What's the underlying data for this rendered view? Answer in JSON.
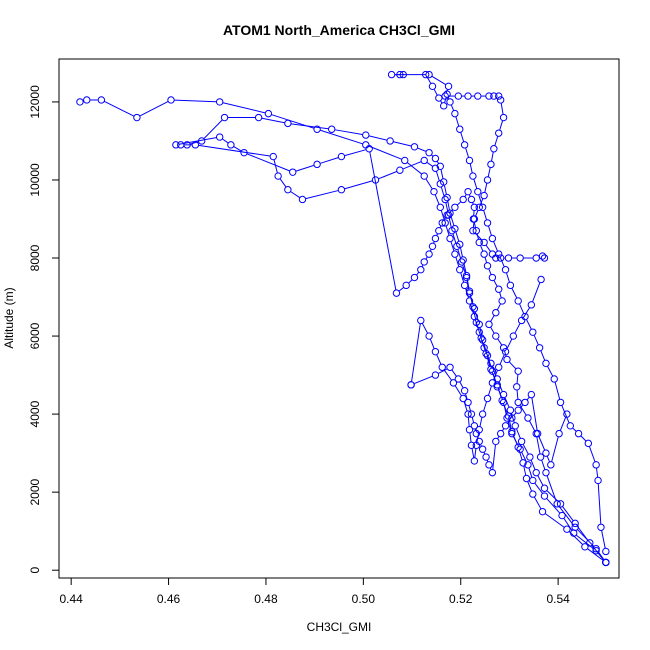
{
  "chart_data": {
    "type": "line",
    "title": "ATOM1 North_America CH3Cl_GMI",
    "xlabel": "CH3Cl_GMI",
    "ylabel": "Altitude (m)",
    "xlim": [
      0.4375,
      0.5525
    ],
    "ylim": [
      -200,
      13100
    ],
    "xticks": [
      0.44,
      0.46,
      0.48,
      0.5,
      0.52,
      0.54
    ],
    "xtick_labels": [
      "0.44",
      "0.46",
      "0.48",
      "0.50",
      "0.52",
      "0.54"
    ],
    "yticks": [
      0,
      2000,
      4000,
      6000,
      8000,
      10000,
      12000
    ],
    "ytick_labels": [
      "0",
      "2000",
      "4000",
      "6000",
      "8000",
      "10000",
      "12000"
    ],
    "grid": false,
    "marker": "open-circle",
    "color": "#0000ff",
    "series": [
      {
        "x": [
          0.5498,
          0.5478,
          0.5435,
          0.5398,
          0.5375,
          0.5364,
          0.5355,
          0.5338,
          0.5318,
          0.5315,
          0.5318,
          0.5295,
          0.5288,
          0.5272,
          0.5258,
          0.5272,
          0.5285,
          0.5278,
          0.5265,
          0.5255,
          0.5248,
          0.5238,
          0.5232,
          0.5226,
          0.5228,
          0.5222,
          0.5215,
          0.5205,
          0.5188,
          0.5172,
          0.5162,
          0.5155,
          0.5148,
          0.5142,
          0.5135,
          0.5125,
          0.5118,
          0.5105,
          0.5088,
          0.5068,
          0.5012,
          0.4955,
          0.4905,
          0.4855,
          0.4755,
          0.4728,
          0.4705,
          0.4615
        ],
        "y": [
          200,
          550,
          1100,
          1700,
          2500,
          2900,
          3500,
          3900,
          4300,
          4700,
          5100,
          5400,
          5700,
          6000,
          6300,
          6600,
          6900,
          7200,
          7500,
          7800,
          8100,
          8400,
          8700,
          9000,
          9300,
          9500,
          9700,
          9500,
          9300,
          9100,
          8900,
          8700,
          8500,
          8300,
          8100,
          7900,
          7700,
          7500,
          7300,
          7100,
          10800,
          10600,
          10400,
          10200,
          10700,
          10900,
          11100,
          10900
        ]
      },
      {
        "x": [
          0.5498,
          0.5478,
          0.5432,
          0.5408,
          0.5372,
          0.5348,
          0.5338,
          0.5322,
          0.5305,
          0.5295,
          0.5288,
          0.5275,
          0.5265,
          0.5255,
          0.5245,
          0.5238,
          0.5228,
          0.5218,
          0.5212,
          0.5202,
          0.5192,
          0.5182,
          0.5175,
          0.5168,
          0.5158,
          0.5148,
          0.5125,
          0.5075,
          0.5025,
          0.4955,
          0.4875,
          0.4845,
          0.4825,
          0.4815,
          0.4655,
          0.4625
        ],
        "y": [
          200,
          500,
          950,
          1400,
          1900,
          2300,
          2700,
          3100,
          3500,
          3900,
          4300,
          4700,
          5100,
          5500,
          5900,
          6300,
          6700,
          7100,
          7500,
          7900,
          8300,
          8700,
          9100,
          9500,
          9900,
          10300,
          10500,
          10250,
          10000,
          9750,
          9500,
          9750,
          10100,
          10600,
          10900,
          10900
        ]
      },
      {
        "x": [
          0.5498,
          0.5455,
          0.5418,
          0.5368,
          0.5348,
          0.5335,
          0.5328,
          0.5318,
          0.5305,
          0.5298,
          0.5285,
          0.5275,
          0.5262,
          0.5252,
          0.5242,
          0.5232,
          0.5225,
          0.5218,
          0.5212,
          0.5205,
          0.5198,
          0.5188,
          0.5178,
          0.5172,
          0.5165,
          0.5158,
          0.5148,
          0.5135,
          0.5105,
          0.5055,
          0.5005,
          0.4935,
          0.4845,
          0.4785,
          0.4715,
          0.4668,
          0.4638
        ],
        "y": [
          200,
          600,
          1050,
          1500,
          1950,
          2350,
          2750,
          3150,
          3550,
          3950,
          4350,
          4750,
          5150,
          5550,
          5950,
          6350,
          6750,
          7150,
          7550,
          7950,
          8350,
          8750,
          9150,
          9550,
          9950,
          10350,
          10550,
          10700,
          10850,
          11000,
          11150,
          11300,
          11450,
          11600,
          11600,
          11000,
          10900
        ]
      },
      {
        "x": [
          0.5498,
          0.5465,
          0.5435,
          0.5405,
          0.5372,
          0.5355,
          0.5342,
          0.5325,
          0.5312,
          0.5302,
          0.5288,
          0.5275,
          0.5262,
          0.5248,
          0.5238,
          0.5228,
          0.5218,
          0.5208,
          0.5198,
          0.5188,
          0.5178,
          0.5168,
          0.5158,
          0.5145,
          0.5125,
          0.5085,
          0.5005,
          0.4905,
          0.4805,
          0.4705,
          0.4605,
          0.4535,
          0.4462,
          0.4432,
          0.4418
        ],
        "y": [
          200,
          700,
          1200,
          1700,
          2100,
          2500,
          2900,
          3300,
          3700,
          4100,
          4500,
          4900,
          5300,
          5700,
          6100,
          6500,
          6900,
          7300,
          7700,
          8100,
          8500,
          8900,
          9300,
          9700,
          10100,
          10500,
          10900,
          11300,
          11700,
          12000,
          12050,
          11600,
          12050,
          12050,
          12000
        ]
      },
      {
        "x": [
          0.5498,
          0.5488,
          0.5482,
          0.5478,
          0.5462,
          0.5442,
          0.5425,
          0.5405,
          0.5392,
          0.5375,
          0.5362,
          0.5348,
          0.5332,
          0.5318,
          0.5302,
          0.5292,
          0.5278,
          0.5265,
          0.5255,
          0.5245,
          0.5235,
          0.5225,
          0.5218,
          0.5208,
          0.5198,
          0.5188,
          0.5178,
          0.5172,
          0.5165,
          0.5155,
          0.5142,
          0.5128
        ],
        "y": [
          480,
          1100,
          2300,
          2700,
          3250,
          3500,
          3700,
          4300,
          4900,
          5300,
          5700,
          6100,
          6500,
          6900,
          7300,
          7700,
          8100,
          8500,
          8900,
          9300,
          9700,
          10100,
          10500,
          10900,
          11300,
          11700,
          12000,
          12200,
          11900,
          12100,
          12400,
          12700
        ]
      },
      {
        "x": [
          0.5075,
          0.5082,
          0.5058,
          0.5135,
          0.5175,
          0.5168,
          0.5195,
          0.5215,
          0.5235,
          0.5258,
          0.5268,
          0.5278,
          0.5282,
          0.5288,
          0.5278,
          0.5268,
          0.5262,
          0.5255,
          0.5248,
          0.5238,
          0.5228,
          0.5225,
          0.5248,
          0.5265,
          0.5272,
          0.5282,
          0.5298,
          0.5322,
          0.5355,
          0.5368,
          0.5372
        ],
        "y": [
          12700,
          12700,
          12700,
          12700,
          12400,
          12150,
          12150,
          12150,
          12150,
          12150,
          12150,
          12150,
          12050,
          11600,
          11200,
          10800,
          10400,
          10000,
          9600,
          9300,
          9000,
          8700,
          8400,
          8100,
          8000,
          8000,
          8000,
          8000,
          8000,
          8050,
          8000
        ]
      },
      {
        "x": [
          0.5365,
          0.5345,
          0.5325,
          0.5308,
          0.5292,
          0.5278,
          0.5265,
          0.5255,
          0.5245,
          0.5238,
          0.5232,
          0.5228,
          0.5222,
          0.5218,
          0.5215,
          0.5205,
          0.5185,
          0.5162,
          0.5148,
          0.5135,
          0.5118,
          0.5098
        ],
        "y": [
          7450,
          6800,
          6400,
          6000,
          5600,
          5200,
          4800,
          4400,
          4000,
          3600,
          3200,
          2800,
          3200,
          3600,
          4000,
          4400,
          4800,
          5200,
          5600,
          6000,
          6400,
          4750
        ]
      },
      {
        "x": [
          0.5098,
          0.5148,
          0.5178,
          0.5195,
          0.5208,
          0.5215,
          0.5222,
          0.5228,
          0.5232,
          0.5238,
          0.5245,
          0.5252,
          0.5258,
          0.5265,
          0.5272,
          0.5282,
          0.5292,
          0.5305,
          0.5318,
          0.5332,
          0.5345,
          0.5358,
          0.5375,
          0.5385,
          0.5402,
          0.5418
        ],
        "y": [
          4750,
          5000,
          5200,
          4900,
          4600,
          4300,
          4000,
          3700,
          3500,
          3300,
          3100,
          2900,
          2700,
          2500,
          3300,
          3500,
          3700,
          3900,
          4100,
          4300,
          4500,
          3500,
          3000,
          2700,
          3500,
          4000
        ]
      }
    ]
  }
}
